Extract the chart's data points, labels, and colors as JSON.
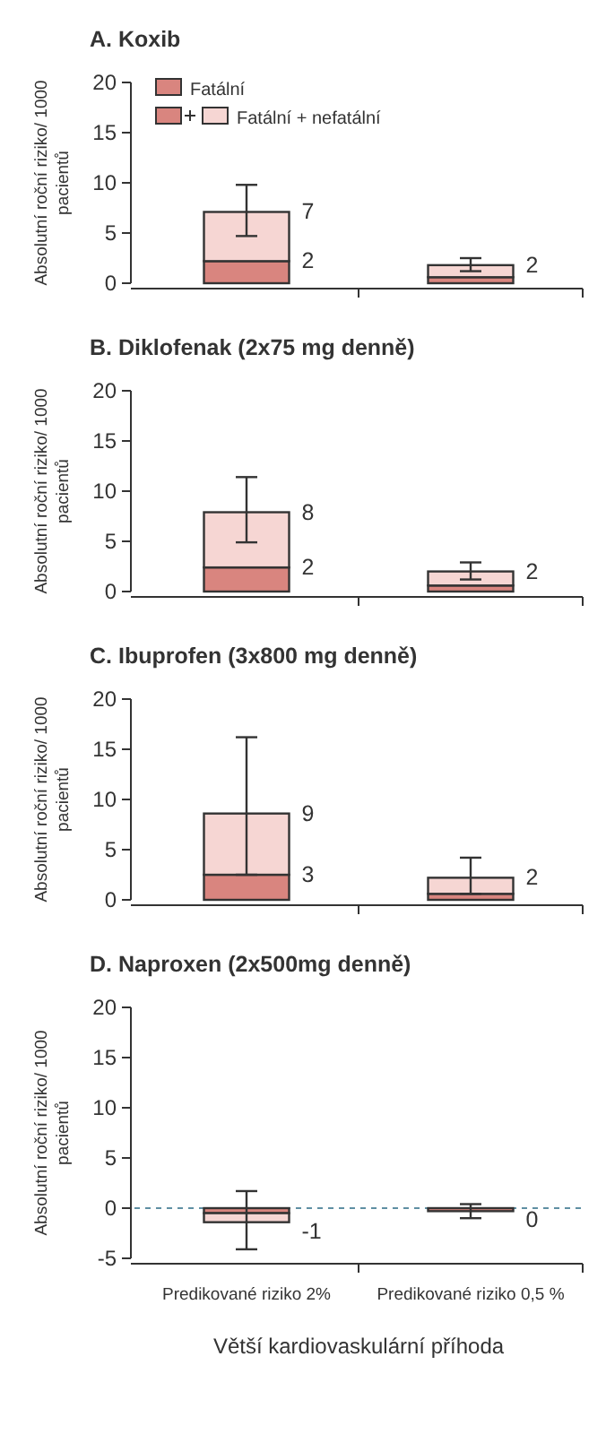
{
  "chart_data": [
    {
      "type": "bar",
      "title": "A. Koxib",
      "ylabel": "Absolutní roční riziko/ 1000 pacientů",
      "categories": [
        null,
        null
      ],
      "ylim": [
        0,
        20
      ],
      "yticks": [
        0,
        5,
        10,
        15,
        20
      ],
      "stacked": true,
      "legend": "top left",
      "totals": [
        "7",
        "2"
      ],
      "series": [
        {
          "name": "Fatální",
          "color": "#d9857f",
          "values": [
            2.2,
            0.6
          ],
          "value_labels": [
            "2",
            null
          ]
        },
        {
          "name": "Fatální + nefatální",
          "color": "#f6d6d3",
          "values": [
            4.9,
            1.2
          ],
          "errors": [
            [
              4.7,
              9.8
            ],
            [
              1.2,
              2.5
            ]
          ]
        }
      ]
    },
    {
      "type": "bar",
      "title": "B. Diklofenak (2x75 mg denně)",
      "ylabel": "Absolutní roční riziko/ 1000 pacientů",
      "categories": [
        null,
        null
      ],
      "ylim": [
        0,
        20
      ],
      "yticks": [
        0,
        5,
        10,
        15,
        20
      ],
      "stacked": true,
      "totals": [
        "8",
        "2"
      ],
      "series": [
        {
          "color": "#d9857f",
          "values": [
            2.4,
            0.6
          ],
          "value_labels": [
            "2",
            null
          ]
        },
        {
          "color": "#f6d6d3",
          "values": [
            5.5,
            1.4
          ],
          "errors": [
            [
              4.9,
              11.4
            ],
            [
              1.2,
              2.9
            ]
          ]
        }
      ]
    },
    {
      "type": "bar",
      "title": "C. Ibuprofen (3x800 mg denně)",
      "ylabel": "Absolutní roční riziko/ 1000 pacientů",
      "categories": [
        null,
        null
      ],
      "ylim": [
        0,
        20
      ],
      "yticks": [
        0,
        5,
        10,
        15,
        20
      ],
      "stacked": true,
      "totals": [
        "9",
        "2"
      ],
      "series": [
        {
          "color": "#d9857f",
          "values": [
            2.5,
            0.6
          ],
          "value_labels": [
            "3",
            null
          ]
        },
        {
          "color": "#f6d6d3",
          "values": [
            6.1,
            1.6
          ],
          "errors": [
            [
              2.5,
              16.2
            ],
            [
              0.6,
              4.2
            ]
          ]
        }
      ]
    },
    {
      "type": "bar",
      "title": "D. Naproxen (2x500mg denně)",
      "ylabel": "Absolutní roční riziko/ 1000 pacientů",
      "xlabel": "Větší kardiovaskulární příhoda",
      "categories": [
        "Predikované riziko 2%",
        "Predikované riziko 0,5 %"
      ],
      "ylim": [
        -5,
        20
      ],
      "yticks": [
        -5,
        0,
        5,
        10,
        15,
        20
      ],
      "stacked": true,
      "totals": [
        "-1",
        "0"
      ],
      "ref_lines": [
        {
          "axis": "y",
          "value": 0,
          "color": "#5f8fa3",
          "line_style": "dashed"
        }
      ],
      "series": [
        {
          "color": "#d9857f",
          "values": [
            -0.5,
            -0.3
          ]
        },
        {
          "color": "#f6d6d3",
          "values": [
            -0.9,
            0
          ],
          "errors": [
            [
              -4.1,
              1.7
            ],
            [
              -1.0,
              0.4
            ]
          ]
        }
      ]
    }
  ]
}
